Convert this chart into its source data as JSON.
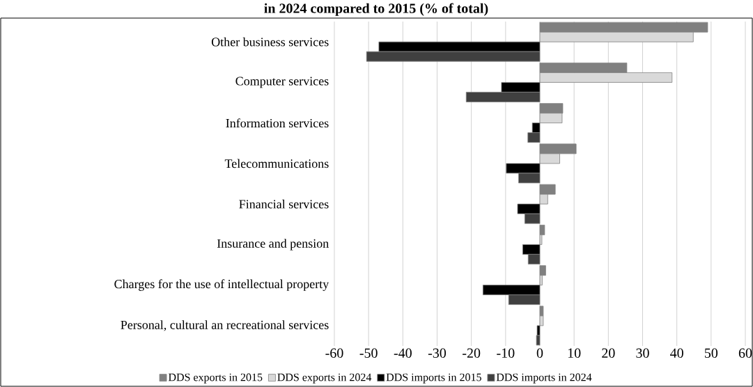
{
  "chart_data": {
    "type": "bar",
    "orientation": "horizontal",
    "title": "in 2024 compared to 2015 (% of total)",
    "categories": [
      "Other business services",
      "Computer services",
      "Information services",
      "Telecommunications",
      "Financial services",
      "Insurance and pension",
      "Charges for the use of intellectual property",
      "Personal, cultural an recreational services"
    ],
    "series": [
      {
        "name": "DDS exports in 2015",
        "color": "#808080",
        "values": [
          49.0,
          25.4,
          6.7,
          10.6,
          4.5,
          1.4,
          1.7,
          1.0
        ]
      },
      {
        "name": "DDS exports in 2024",
        "color": "#d9d9d9",
        "values": [
          44.8,
          38.6,
          6.5,
          5.8,
          2.3,
          0.6,
          0.7,
          1.0
        ]
      },
      {
        "name": "DDS imports in 2015",
        "color": "#000000",
        "values": [
          -47.0,
          -11.2,
          -2.2,
          -9.8,
          -6.5,
          -5.0,
          -16.6,
          -0.8
        ]
      },
      {
        "name": "DDS imports in 2024",
        "color": "#404040",
        "values": [
          -50.6,
          -21.5,
          -3.5,
          -6.2,
          -4.4,
          -3.4,
          -9.1,
          -1.0
        ]
      }
    ],
    "xlim": [
      -60,
      60
    ],
    "xticks": [
      -60,
      -50,
      -40,
      -30,
      -20,
      -10,
      0,
      10,
      20,
      30,
      40,
      50,
      60
    ],
    "grid": "x",
    "legend": "bottom"
  }
}
